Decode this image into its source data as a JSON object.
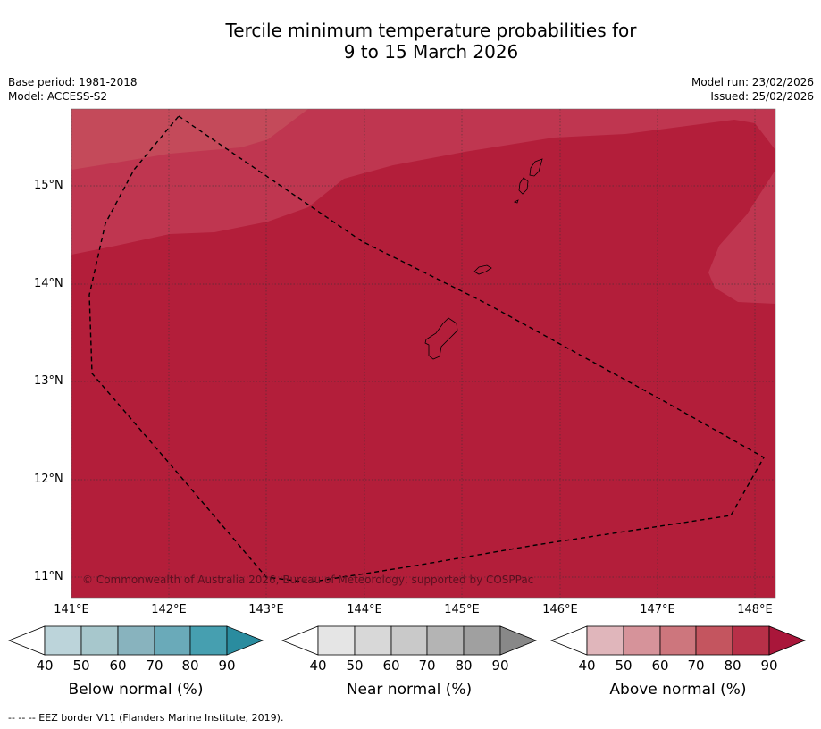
{
  "title": {
    "line1": "Tercile minimum temperature probabilities for",
    "line2": "9 to 15 March 2026"
  },
  "meta": {
    "base_period": "Base period: 1981-2018",
    "model": "Model: ACCESS-S2",
    "model_run": "Model run: 23/02/2026",
    "issued": "Issued: 25/02/2026"
  },
  "map": {
    "copyright": "© Commonwealth of Australia 2026, Bureau of Meteorology, supported by COSPPac",
    "lat_labels": [
      "15°N",
      "14°N",
      "13°N",
      "12°N",
      "11°N"
    ],
    "lon_labels": [
      "141°E",
      "142°E",
      "143°E",
      "144°E",
      "145°E",
      "146°E",
      "147°E",
      "148°E"
    ],
    "colors": {
      "above_90": "#b31e3a",
      "above_80": "#bf3650",
      "above_80_light": "#c44a5a"
    }
  },
  "colorbars": {
    "tick_values": [
      "40",
      "50",
      "60",
      "70",
      "80",
      "90"
    ],
    "below": {
      "label": "Below normal (%)",
      "colors": [
        "#ffffff",
        "#bcd4da",
        "#a7c7cc",
        "#88b3be",
        "#6aaab9",
        "#469fb0",
        "#2a8c9f"
      ]
    },
    "near": {
      "label": "Near normal (%)",
      "colors": [
        "#ffffff",
        "#e5e5e5",
        "#d8d8d8",
        "#c9c9c9",
        "#b4b4b4",
        "#a0a0a0",
        "#888888"
      ]
    },
    "above": {
      "label": "Above normal (%)",
      "colors": [
        "#ffffff",
        "#e0b6bb",
        "#d6939a",
        "#cd767d",
        "#c4555f",
        "#b83048",
        "#a9163a"
      ]
    }
  },
  "footnote": "--  --  -- EEZ border V11 (Flanders Marine Institute, 2019)."
}
